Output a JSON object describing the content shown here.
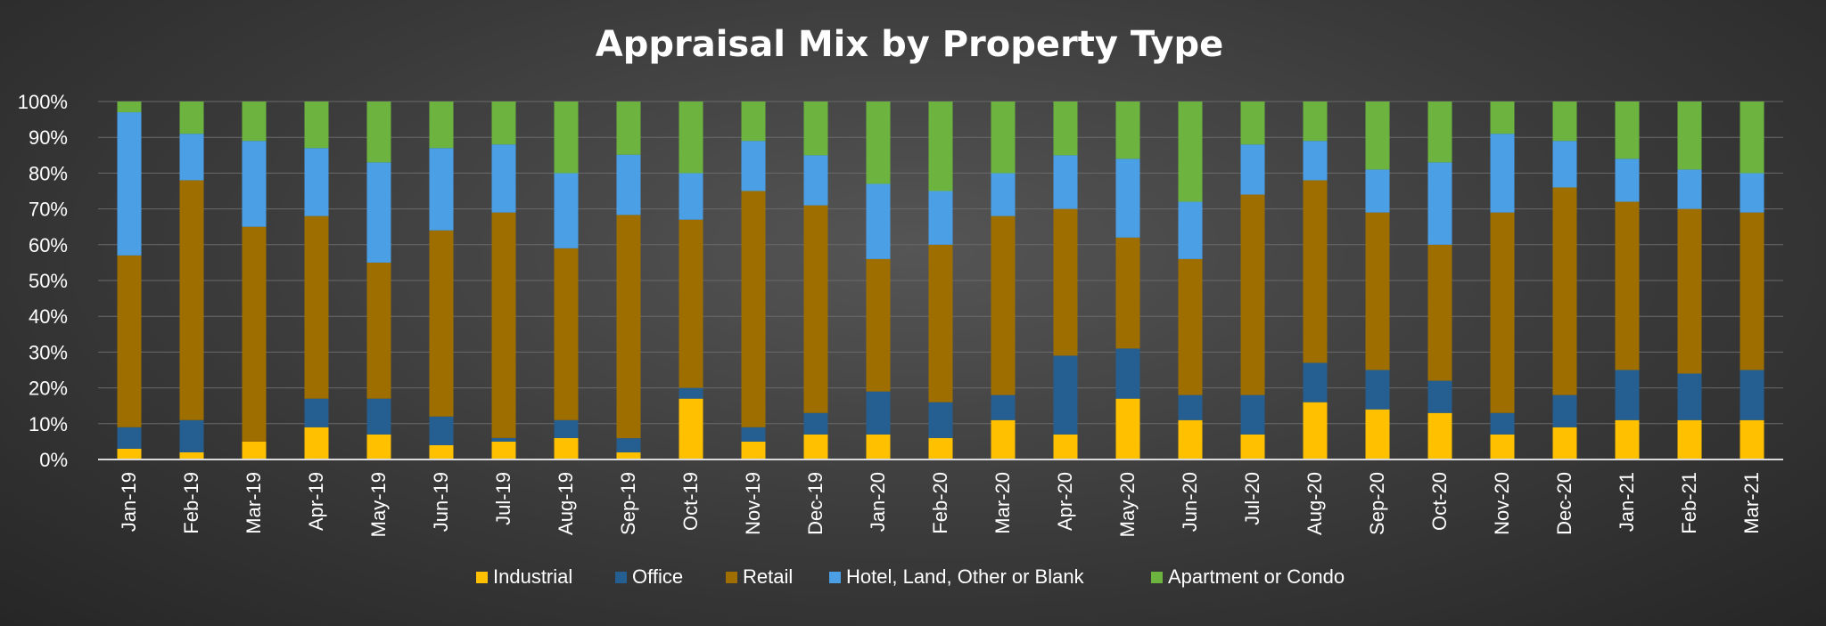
{
  "chart_data": {
    "type": "bar",
    "stacked": true,
    "percent_stacked": true,
    "title": "Appraisal Mix by Property Type",
    "xlabel": "",
    "ylabel": "",
    "ylim": [
      0,
      100
    ],
    "y_ticks": [
      "0%",
      "10%",
      "20%",
      "30%",
      "40%",
      "50%",
      "60%",
      "70%",
      "80%",
      "90%",
      "100%"
    ],
    "grid": true,
    "legend_position": "bottom",
    "categories": [
      "Jan-19",
      "Feb-19",
      "Mar-19",
      "Apr-19",
      "May-19",
      "Jun-19",
      "Jul-19",
      "Aug-19",
      "Sep-19",
      "Oct-19",
      "Nov-19",
      "Dec-19",
      "Jan-20",
      "Feb-20",
      "Mar-20",
      "Apr-20",
      "May-20",
      "Jun-20",
      "Jul-20",
      "Aug-20",
      "Sep-20",
      "Oct-20",
      "Nov-20",
      "Dec-20",
      "Jan-21",
      "Feb-21",
      "Mar-21"
    ],
    "series": [
      {
        "name": "Industrial",
        "color": "#FFC000",
        "values": [
          3,
          2,
          5,
          9,
          7,
          4,
          5,
          6,
          2,
          17,
          5,
          7,
          7,
          6,
          11,
          7,
          17,
          11,
          7,
          16,
          14,
          13,
          7,
          9,
          11,
          11,
          11
        ]
      },
      {
        "name": "Office",
        "color": "#255E91",
        "values": [
          6,
          9,
          0,
          8,
          10,
          8,
          1,
          5,
          4,
          3,
          4,
          6,
          12,
          10,
          7,
          22,
          14,
          7,
          11,
          11,
          11,
          9,
          6,
          9,
          14,
          13,
          14
        ]
      },
      {
        "name": "Retail",
        "color": "#9E6E00",
        "values": [
          48,
          67,
          60,
          51,
          38,
          52,
          63,
          48,
          63,
          47,
          66,
          58,
          37,
          44,
          50,
          41,
          31,
          38,
          56,
          51,
          44,
          38,
          56,
          58,
          47,
          46,
          44
        ]
      },
      {
        "name": "Hotel, Land,  Other or Blank",
        "color": "#4BA0E5",
        "values": [
          40,
          13,
          24,
          19,
          28,
          23,
          19,
          21,
          17,
          13,
          14,
          14,
          21,
          15,
          12,
          15,
          22,
          16,
          14,
          11,
          12,
          23,
          22,
          13,
          12,
          11,
          11
        ]
      },
      {
        "name": "Apartment or Condo",
        "color": "#6DB33F",
        "values": [
          3,
          9,
          11,
          13,
          17,
          13,
          12,
          20,
          15,
          20,
          11,
          15,
          23,
          25,
          20,
          15,
          16,
          28,
          12,
          11,
          19,
          17,
          9,
          11,
          16,
          19,
          20
        ]
      }
    ]
  }
}
